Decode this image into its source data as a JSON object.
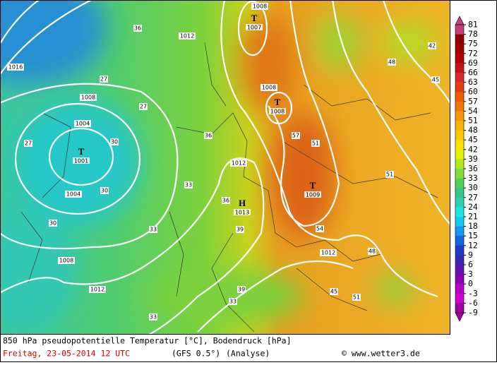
{
  "colorbar": {
    "ticks": [
      81,
      78,
      75,
      72,
      69,
      66,
      63,
      60,
      57,
      54,
      51,
      48,
      45,
      42,
      39,
      36,
      33,
      30,
      27,
      24,
      21,
      18,
      15,
      12,
      9,
      6,
      3,
      0,
      -3,
      -6,
      -9
    ],
    "colors": [
      "#c83c7c",
      "#8c0000",
      "#a00000",
      "#b40000",
      "#c81414",
      "#dc2828",
      "#e63c14",
      "#f05a00",
      "#f07800",
      "#f59600",
      "#f5b400",
      "#fac800",
      "#ffe100",
      "#e6f000",
      "#b4e61e",
      "#82dc3c",
      "#50d25a",
      "#32c882",
      "#28d2b4",
      "#1ee6e6",
      "#14c8f0",
      "#1496f0",
      "#1464dc",
      "#1e3cc8",
      "#3c28b4",
      "#6414b4",
      "#8c00b4",
      "#b400c8",
      "#d200d2",
      "#a000a0"
    ]
  },
  "footer": {
    "title": "850 hPa pseudopotentielle Temperatur [°C], Bodendruck [hPa]",
    "date": "Freitag, 23-05-2014  12 UTC",
    "model": "(GFS 0.5°)",
    "analysis": "(Analyse)",
    "credit": "© www.wetter3.de"
  },
  "map": {
    "systems": [
      {
        "symbol": "T",
        "value": "1007"
      },
      {
        "symbol": "T",
        "value": "1008"
      },
      {
        "symbol": "T",
        "value": "1001"
      },
      {
        "symbol": "T",
        "value": "1009"
      },
      {
        "symbol": "H",
        "value": "1013"
      }
    ],
    "isobar_labels": [
      "1008",
      "1012",
      "1016",
      "1008",
      "1004",
      "1008",
      "1004",
      "1012",
      "1008",
      "1012",
      "1012"
    ],
    "temperature_labels": [
      "36",
      "27",
      "27",
      "30",
      "33",
      "33",
      "30",
      "27",
      "36",
      "36",
      "39",
      "48",
      "45",
      "51",
      "51",
      "54",
      "57",
      "48",
      "42",
      "45",
      "51",
      "33",
      "39",
      "33",
      "30"
    ]
  }
}
